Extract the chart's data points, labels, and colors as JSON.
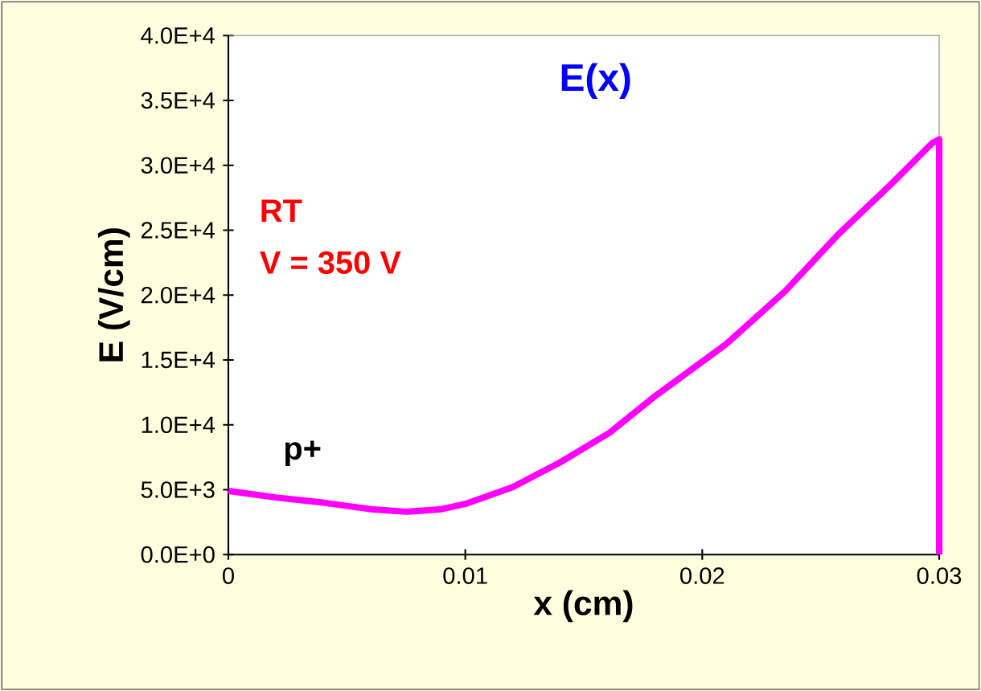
{
  "chart_data": {
    "type": "line",
    "xlabel": "x (cm)",
    "ylabel": "E (V/cm)",
    "annotations": [
      "E(x)",
      "RT",
      "V = 350 V",
      "p+"
    ],
    "x": [
      0,
      0.002,
      0.004,
      0.006,
      0.0075,
      0.009,
      0.01,
      0.012,
      0.014,
      0.0161,
      0.018,
      0.021,
      0.0235,
      0.0257,
      0.028,
      0.0297,
      0.03,
      0.03
    ],
    "series": [
      {
        "color": "#ff00ff",
        "values": [
          4900,
          4400,
          4000,
          3500,
          3300,
          3500,
          3900,
          5200,
          7100,
          9400,
          12200,
          16200,
          20300,
          24600,
          28600,
          31700,
          32000,
          0
        ]
      }
    ],
    "xlim": [
      0,
      0.03
    ],
    "ylim": [
      0,
      40000
    ],
    "xticks": [
      0,
      0.01,
      0.02,
      0.03
    ],
    "yticks": [
      {
        "value": 0,
        "label": "0.0E+0"
      },
      {
        "value": 5000,
        "label": "5.0E+3"
      },
      {
        "value": 10000,
        "label": "1.0E+4"
      },
      {
        "value": 15000,
        "label": "1.5E+4"
      },
      {
        "value": 20000,
        "label": "2.0E+4"
      },
      {
        "value": 25000,
        "label": "2.5E+4"
      },
      {
        "value": 30000,
        "label": "3.0E+4"
      },
      {
        "value": 35000,
        "label": "3.5E+4"
      },
      {
        "value": 40000,
        "label": "4.0E+4"
      }
    ],
    "grid": false,
    "marker": "none",
    "line_style": "solid"
  }
}
